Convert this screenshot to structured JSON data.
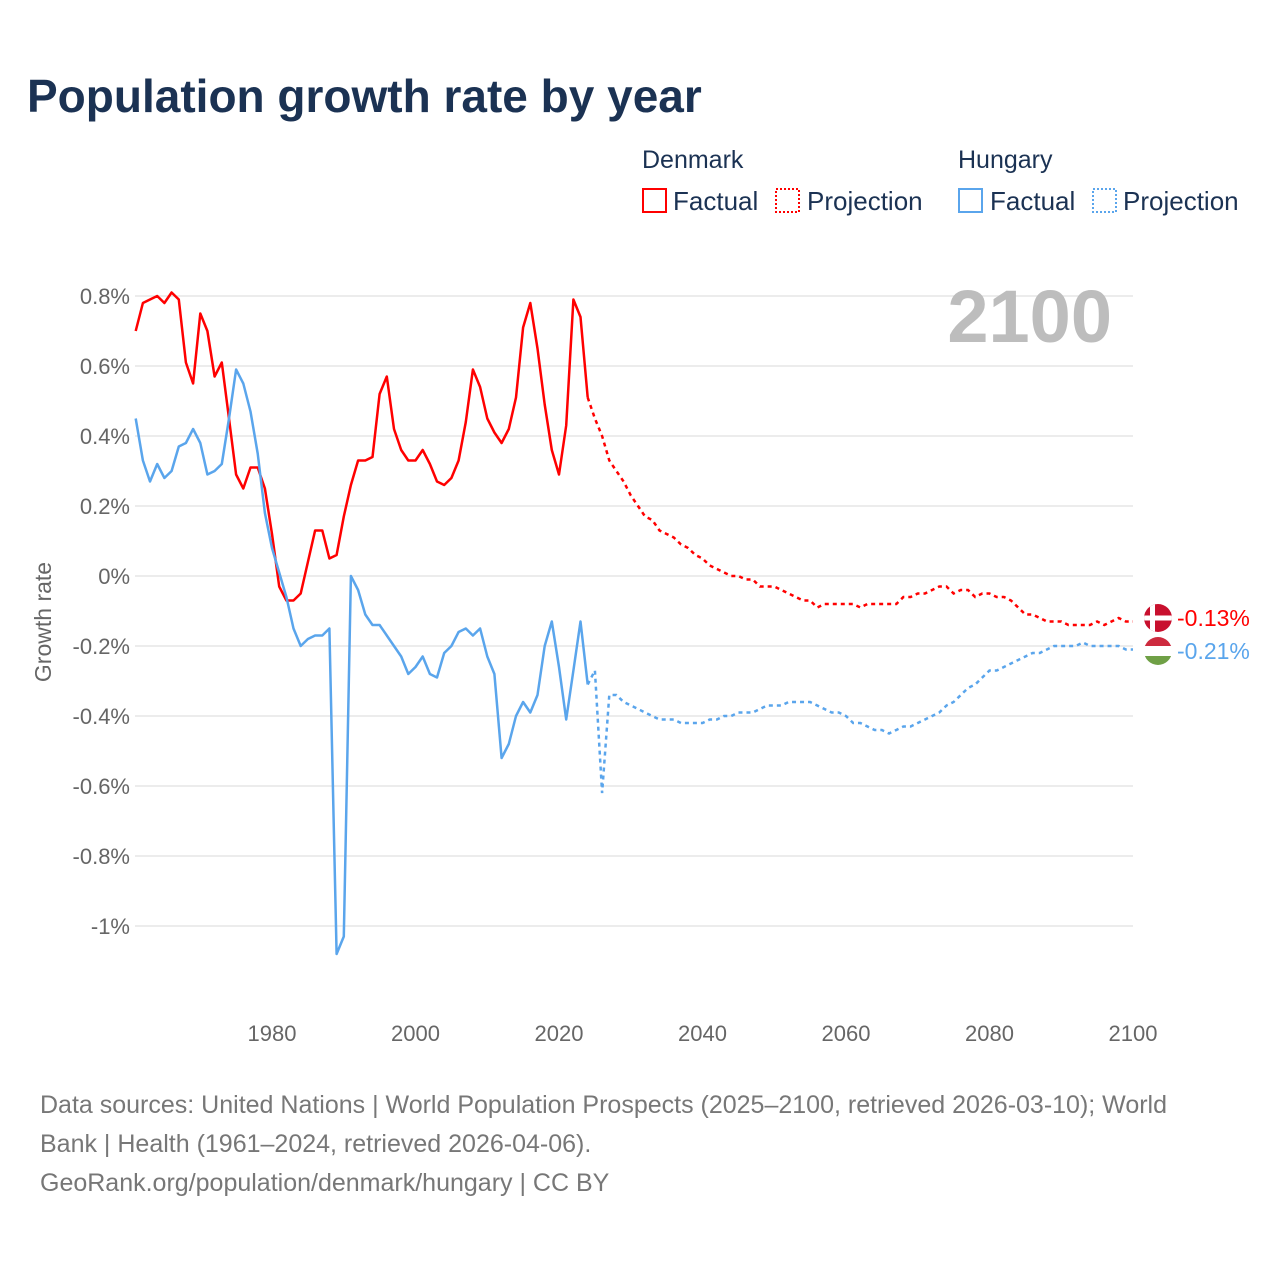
{
  "chart_data": {
    "type": "line",
    "title": "Population growth rate by year",
    "ylabel": "Growth rate",
    "xlabel": "",
    "xlim": [
      1961,
      2100
    ],
    "ylim": [
      -1.2,
      0.85
    ],
    "x_ticks": [
      "1980",
      "2000",
      "2020",
      "2040",
      "2060",
      "2080",
      "2100"
    ],
    "x_tick_values": [
      1980,
      2000,
      2020,
      2040,
      2060,
      2080,
      2100
    ],
    "y_ticks": [
      "0.8%",
      "0.6%",
      "0.4%",
      "0.2%",
      "0%",
      "-0.2%",
      "-0.4%",
      "-0.6%",
      "-0.8%",
      "-1%"
    ],
    "y_tick_values": [
      0.8,
      0.6,
      0.4,
      0.2,
      0,
      -0.2,
      -0.4,
      -0.6,
      -0.8,
      -1.0
    ],
    "year_label": "2100",
    "legend": {
      "groups": [
        {
          "name": "Denmark",
          "factual": "Factual",
          "projection": "Projection"
        },
        {
          "name": "Hungary",
          "factual": "Factual",
          "projection": "Projection"
        }
      ],
      "placement": "top-right"
    },
    "series": [
      {
        "name": "Denmark",
        "color": "#ff0000",
        "end_label": "-0.13%",
        "factual_start": 1961,
        "factual": [
          0.7,
          0.78,
          0.79,
          0.8,
          0.78,
          0.81,
          0.79,
          0.61,
          0.55,
          0.75,
          0.7,
          0.57,
          0.61,
          0.45,
          0.29,
          0.25,
          0.31,
          0.31,
          0.25,
          0.12,
          -0.03,
          -0.07,
          -0.07,
          -0.05,
          0.04,
          0.13,
          0.13,
          0.05,
          0.06,
          0.17,
          0.26,
          0.33,
          0.33,
          0.34,
          0.52,
          0.57,
          0.42,
          0.36,
          0.33,
          0.33,
          0.36,
          0.32,
          0.27,
          0.26,
          0.28,
          0.33,
          0.44,
          0.59,
          0.54,
          0.45,
          0.41,
          0.38,
          0.42,
          0.51,
          0.71,
          0.78,
          0.65,
          0.49,
          0.36,
          0.29,
          0.43,
          0.79,
          0.74,
          0.51
        ],
        "projection_start": 2024,
        "projection": [
          0.51,
          0.45,
          0.4,
          0.33,
          0.3,
          0.27,
          0.23,
          0.2,
          0.17,
          0.16,
          0.13,
          0.12,
          0.11,
          0.09,
          0.08,
          0.06,
          0.05,
          0.03,
          0.02,
          0.01,
          0.0,
          0.0,
          -0.01,
          -0.01,
          -0.03,
          -0.03,
          -0.03,
          -0.04,
          -0.05,
          -0.06,
          -0.07,
          -0.07,
          -0.09,
          -0.08,
          -0.08,
          -0.08,
          -0.08,
          -0.08,
          -0.09,
          -0.08,
          -0.08,
          -0.08,
          -0.08,
          -0.08,
          -0.06,
          -0.06,
          -0.05,
          -0.05,
          -0.04,
          -0.03,
          -0.03,
          -0.05,
          -0.04,
          -0.04,
          -0.06,
          -0.05,
          -0.05,
          -0.06,
          -0.06,
          -0.07,
          -0.09,
          -0.11,
          -0.11,
          -0.12,
          -0.13,
          -0.13,
          -0.13,
          -0.14,
          -0.14,
          -0.14,
          -0.14,
          -0.13,
          -0.14,
          -0.13,
          -0.12,
          -0.13,
          -0.13
        ]
      },
      {
        "name": "Hungary",
        "color": "#5aa5ec",
        "end_label": "-0.21%",
        "factual_start": 1961,
        "factual": [
          0.45,
          0.33,
          0.27,
          0.32,
          0.28,
          0.3,
          0.37,
          0.38,
          0.42,
          0.38,
          0.29,
          0.3,
          0.32,
          0.45,
          0.59,
          0.55,
          0.47,
          0.35,
          0.18,
          0.08,
          0.01,
          -0.06,
          -0.15,
          -0.2,
          -0.18,
          -0.17,
          -0.17,
          -0.15,
          -1.08,
          -1.03,
          0.0,
          -0.04,
          -0.11,
          -0.14,
          -0.14,
          -0.17,
          -0.2,
          -0.23,
          -0.28,
          -0.26,
          -0.23,
          -0.28,
          -0.29,
          -0.22,
          -0.2,
          -0.16,
          -0.15,
          -0.17,
          -0.15,
          -0.23,
          -0.28,
          -0.52,
          -0.48,
          -0.4,
          -0.36,
          -0.39,
          -0.34,
          -0.2,
          -0.13,
          -0.26,
          -0.41,
          -0.27,
          -0.13,
          -0.31
        ],
        "projection_start": 2024,
        "projection": [
          -0.31,
          -0.27,
          -0.62,
          -0.34,
          -0.34,
          -0.36,
          -0.37,
          -0.38,
          -0.39,
          -0.4,
          -0.41,
          -0.41,
          -0.41,
          -0.42,
          -0.42,
          -0.42,
          -0.42,
          -0.41,
          -0.41,
          -0.4,
          -0.4,
          -0.39,
          -0.39,
          -0.39,
          -0.38,
          -0.37,
          -0.37,
          -0.37,
          -0.36,
          -0.36,
          -0.36,
          -0.36,
          -0.37,
          -0.38,
          -0.39,
          -0.39,
          -0.4,
          -0.42,
          -0.42,
          -0.43,
          -0.44,
          -0.44,
          -0.45,
          -0.44,
          -0.43,
          -0.43,
          -0.42,
          -0.41,
          -0.4,
          -0.39,
          -0.37,
          -0.36,
          -0.34,
          -0.32,
          -0.31,
          -0.29,
          -0.27,
          -0.27,
          -0.26,
          -0.25,
          -0.24,
          -0.23,
          -0.22,
          -0.22,
          -0.21,
          -0.2,
          -0.2,
          -0.2,
          -0.2,
          -0.19,
          -0.2,
          -0.2,
          -0.2,
          -0.2,
          -0.2,
          -0.21,
          -0.21
        ]
      }
    ]
  },
  "footer": {
    "line1": "Data sources: United Nations | World Population Prospects (2025–2100, retrieved 2026-03-10); World",
    "line2": "Bank | Health (1961–2024, retrieved 2026-04-06).",
    "line3": "GeoRank.org/population/denmark/hungary | CC BY"
  }
}
